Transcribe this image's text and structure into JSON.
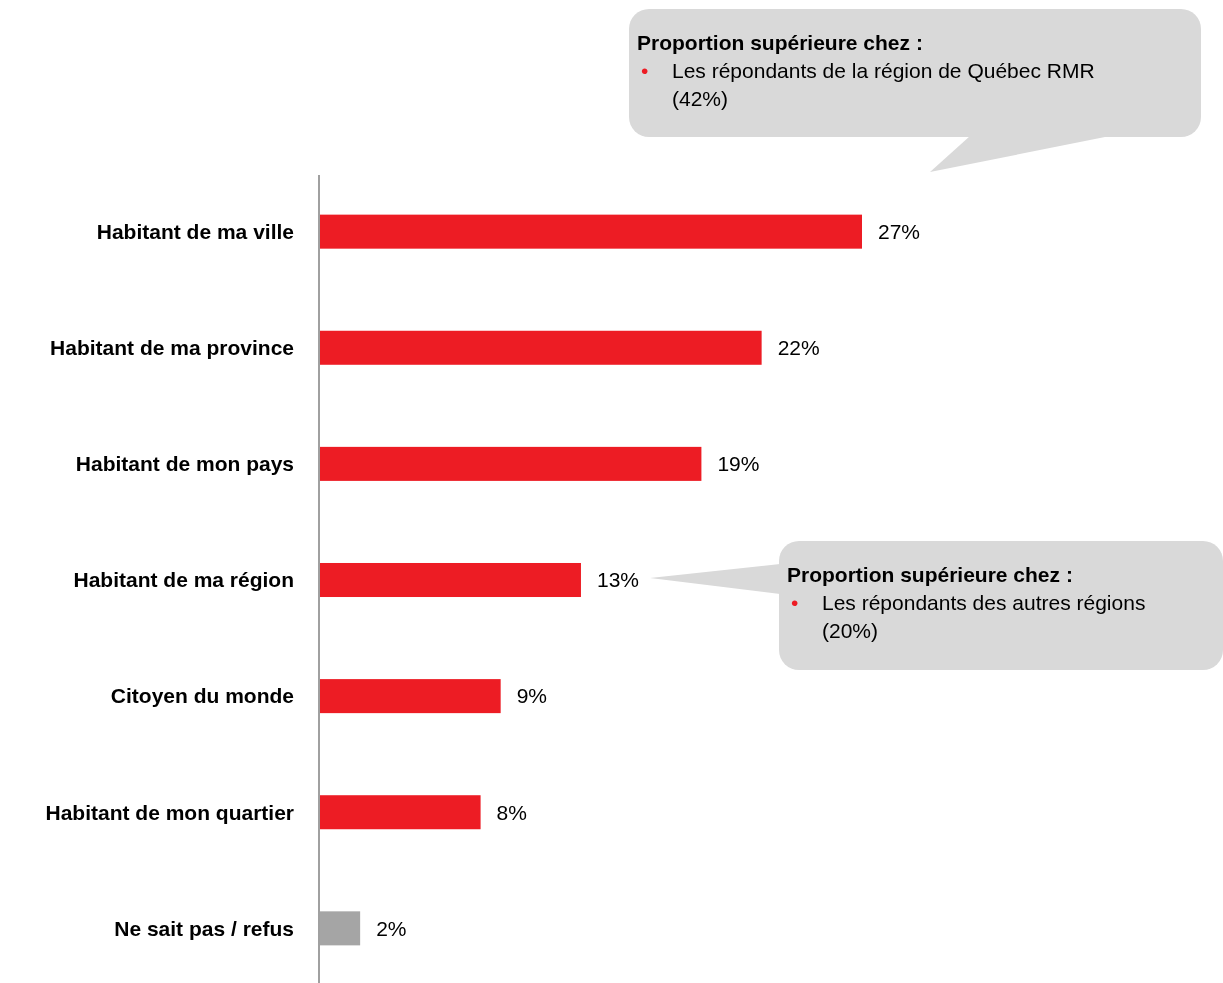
{
  "chart_data": {
    "type": "bar",
    "orientation": "horizontal",
    "categories": [
      "Habitant de ma ville",
      "Habitant de ma province",
      "Habitant de mon pays",
      "Habitant de ma région",
      "Citoyen du monde",
      "Habitant de mon quartier",
      "Ne sait pas / refus"
    ],
    "values": [
      27,
      22,
      19,
      13,
      9,
      8,
      2
    ],
    "colors": [
      "#ed1c24",
      "#ed1c24",
      "#ed1c24",
      "#ed1c24",
      "#ed1c24",
      "#ed1c24",
      "#a5a5a5"
    ],
    "data_labels": true,
    "value_labels": [
      "27%",
      "22%",
      "19%",
      "13%",
      "9%",
      "8%",
      "2%"
    ],
    "annotations": [
      "Proportion supérieure chez :",
      "•",
      "Les répondants de la région de Québec RMR (42%)",
      "Proportion supérieure chez :",
      "•",
      "Les répondants des  autres régions (20%)"
    ]
  }
}
